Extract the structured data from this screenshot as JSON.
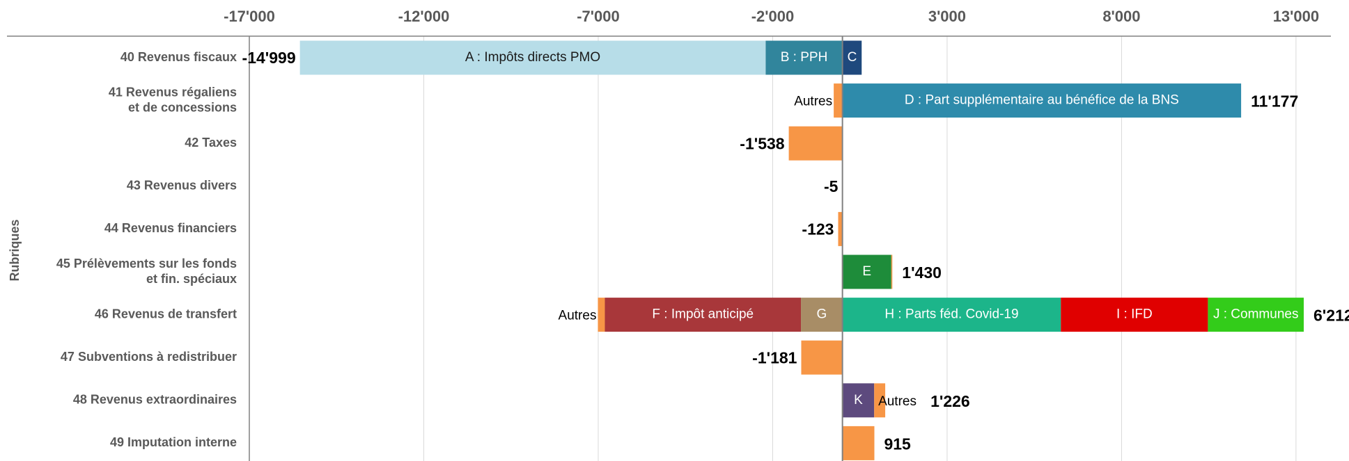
{
  "chart_data": {
    "type": "diverging-stacked-bar",
    "y_axis_label": "Rubriques",
    "xlim": [
      -17000,
      14000
    ],
    "xticks": [
      {
        "value": -17000,
        "label": "-17'000"
      },
      {
        "value": -12000,
        "label": "-12'000"
      },
      {
        "value": -7000,
        "label": "-7'000"
      },
      {
        "value": -2000,
        "label": "-2'000"
      },
      {
        "value": 3000,
        "label": "3'000"
      },
      {
        "value": 8000,
        "label": "8'000"
      },
      {
        "value": 13000,
        "label": "13'000"
      }
    ],
    "grid": true,
    "rows": [
      {
        "label": [
          "40 Revenus fiscaux"
        ],
        "total": -14999,
        "total_label": "-14'999",
        "segments": [
          {
            "name": "A : Impôts directs PMO",
            "value": -13350,
            "color": "#b7dde8"
          },
          {
            "name": "B : PPH",
            "value": -2200,
            "color": "#31859c"
          },
          {
            "name": "C",
            "value": 551,
            "color": "#1f497d"
          }
        ]
      },
      {
        "label": [
          "41 Revenus régaliens",
          "et de concessions"
        ],
        "total": 11177,
        "total_label": "11'177",
        "segments": [
          {
            "name": "Autres",
            "value": -250,
            "color": "#f79646"
          },
          {
            "name": "D : Part supplémentaire au bénéfice de la BNS",
            "value": 11427,
            "color": "#2e8bab"
          }
        ]
      },
      {
        "label": [
          "42 Taxes"
        ],
        "total": -1538,
        "total_label": "-1'538",
        "segments": [
          {
            "value": -1538,
            "color": "#f79646"
          }
        ]
      },
      {
        "label": [
          "43 Revenus divers"
        ],
        "total": -5,
        "segments": [
          {
            "value": -5,
            "color": "#f79646"
          }
        ]
      },
      {
        "label": [
          "44 Revenus financiers"
        ],
        "total": -123,
        "segments": [
          {
            "value": -123,
            "color": "#f79646"
          }
        ]
      },
      {
        "label": [
          "45 Prélèvements sur les fonds",
          "et fin. spéciaux"
        ],
        "total": 1430,
        "total_label": "1'430",
        "segments": [
          {
            "name": "E",
            "value": 1400,
            "color": "#1e8c3a"
          },
          {
            "value": 30,
            "color": "#f79646"
          }
        ]
      },
      {
        "label": [
          "46 Revenus de transfert"
        ],
        "total": 6212,
        "total_label": "6'212",
        "segments": [
          {
            "name": "Autres",
            "value": -200,
            "color": "#f79646"
          },
          {
            "name": "F : Impôt anticipé",
            "value": -5620,
            "color": "#a8373a"
          },
          {
            "name": "G",
            "value": -1190,
            "color": "#a88d66"
          },
          {
            "name": "H : Parts féd. Covid-19",
            "value": 6260,
            "color": "#1cb58a"
          },
          {
            "name": "I : IFD",
            "value": 4215,
            "color": "#e00000"
          },
          {
            "name": "J : Communes",
            "value": 2747,
            "color": "#33cc1a"
          }
        ]
      },
      {
        "label": [
          "47 Subventions à redistribuer"
        ],
        "total": -1181,
        "total_label": "-1'181",
        "segments": [
          {
            "value": -1181,
            "color": "#f79646"
          }
        ]
      },
      {
        "label": [
          "48 Revenus extraordinaires"
        ],
        "total": 1226,
        "total_label": "1'226",
        "segments": [
          {
            "name": "K",
            "value": 910,
            "color": "#5d4a7e"
          },
          {
            "name": "Autres",
            "value": 316,
            "color": "#f79646"
          }
        ]
      },
      {
        "label": [
          "49 Imputation interne"
        ],
        "total": 915,
        "segments": [
          {
            "value": 915,
            "color": "#f79646"
          }
        ]
      }
    ]
  }
}
